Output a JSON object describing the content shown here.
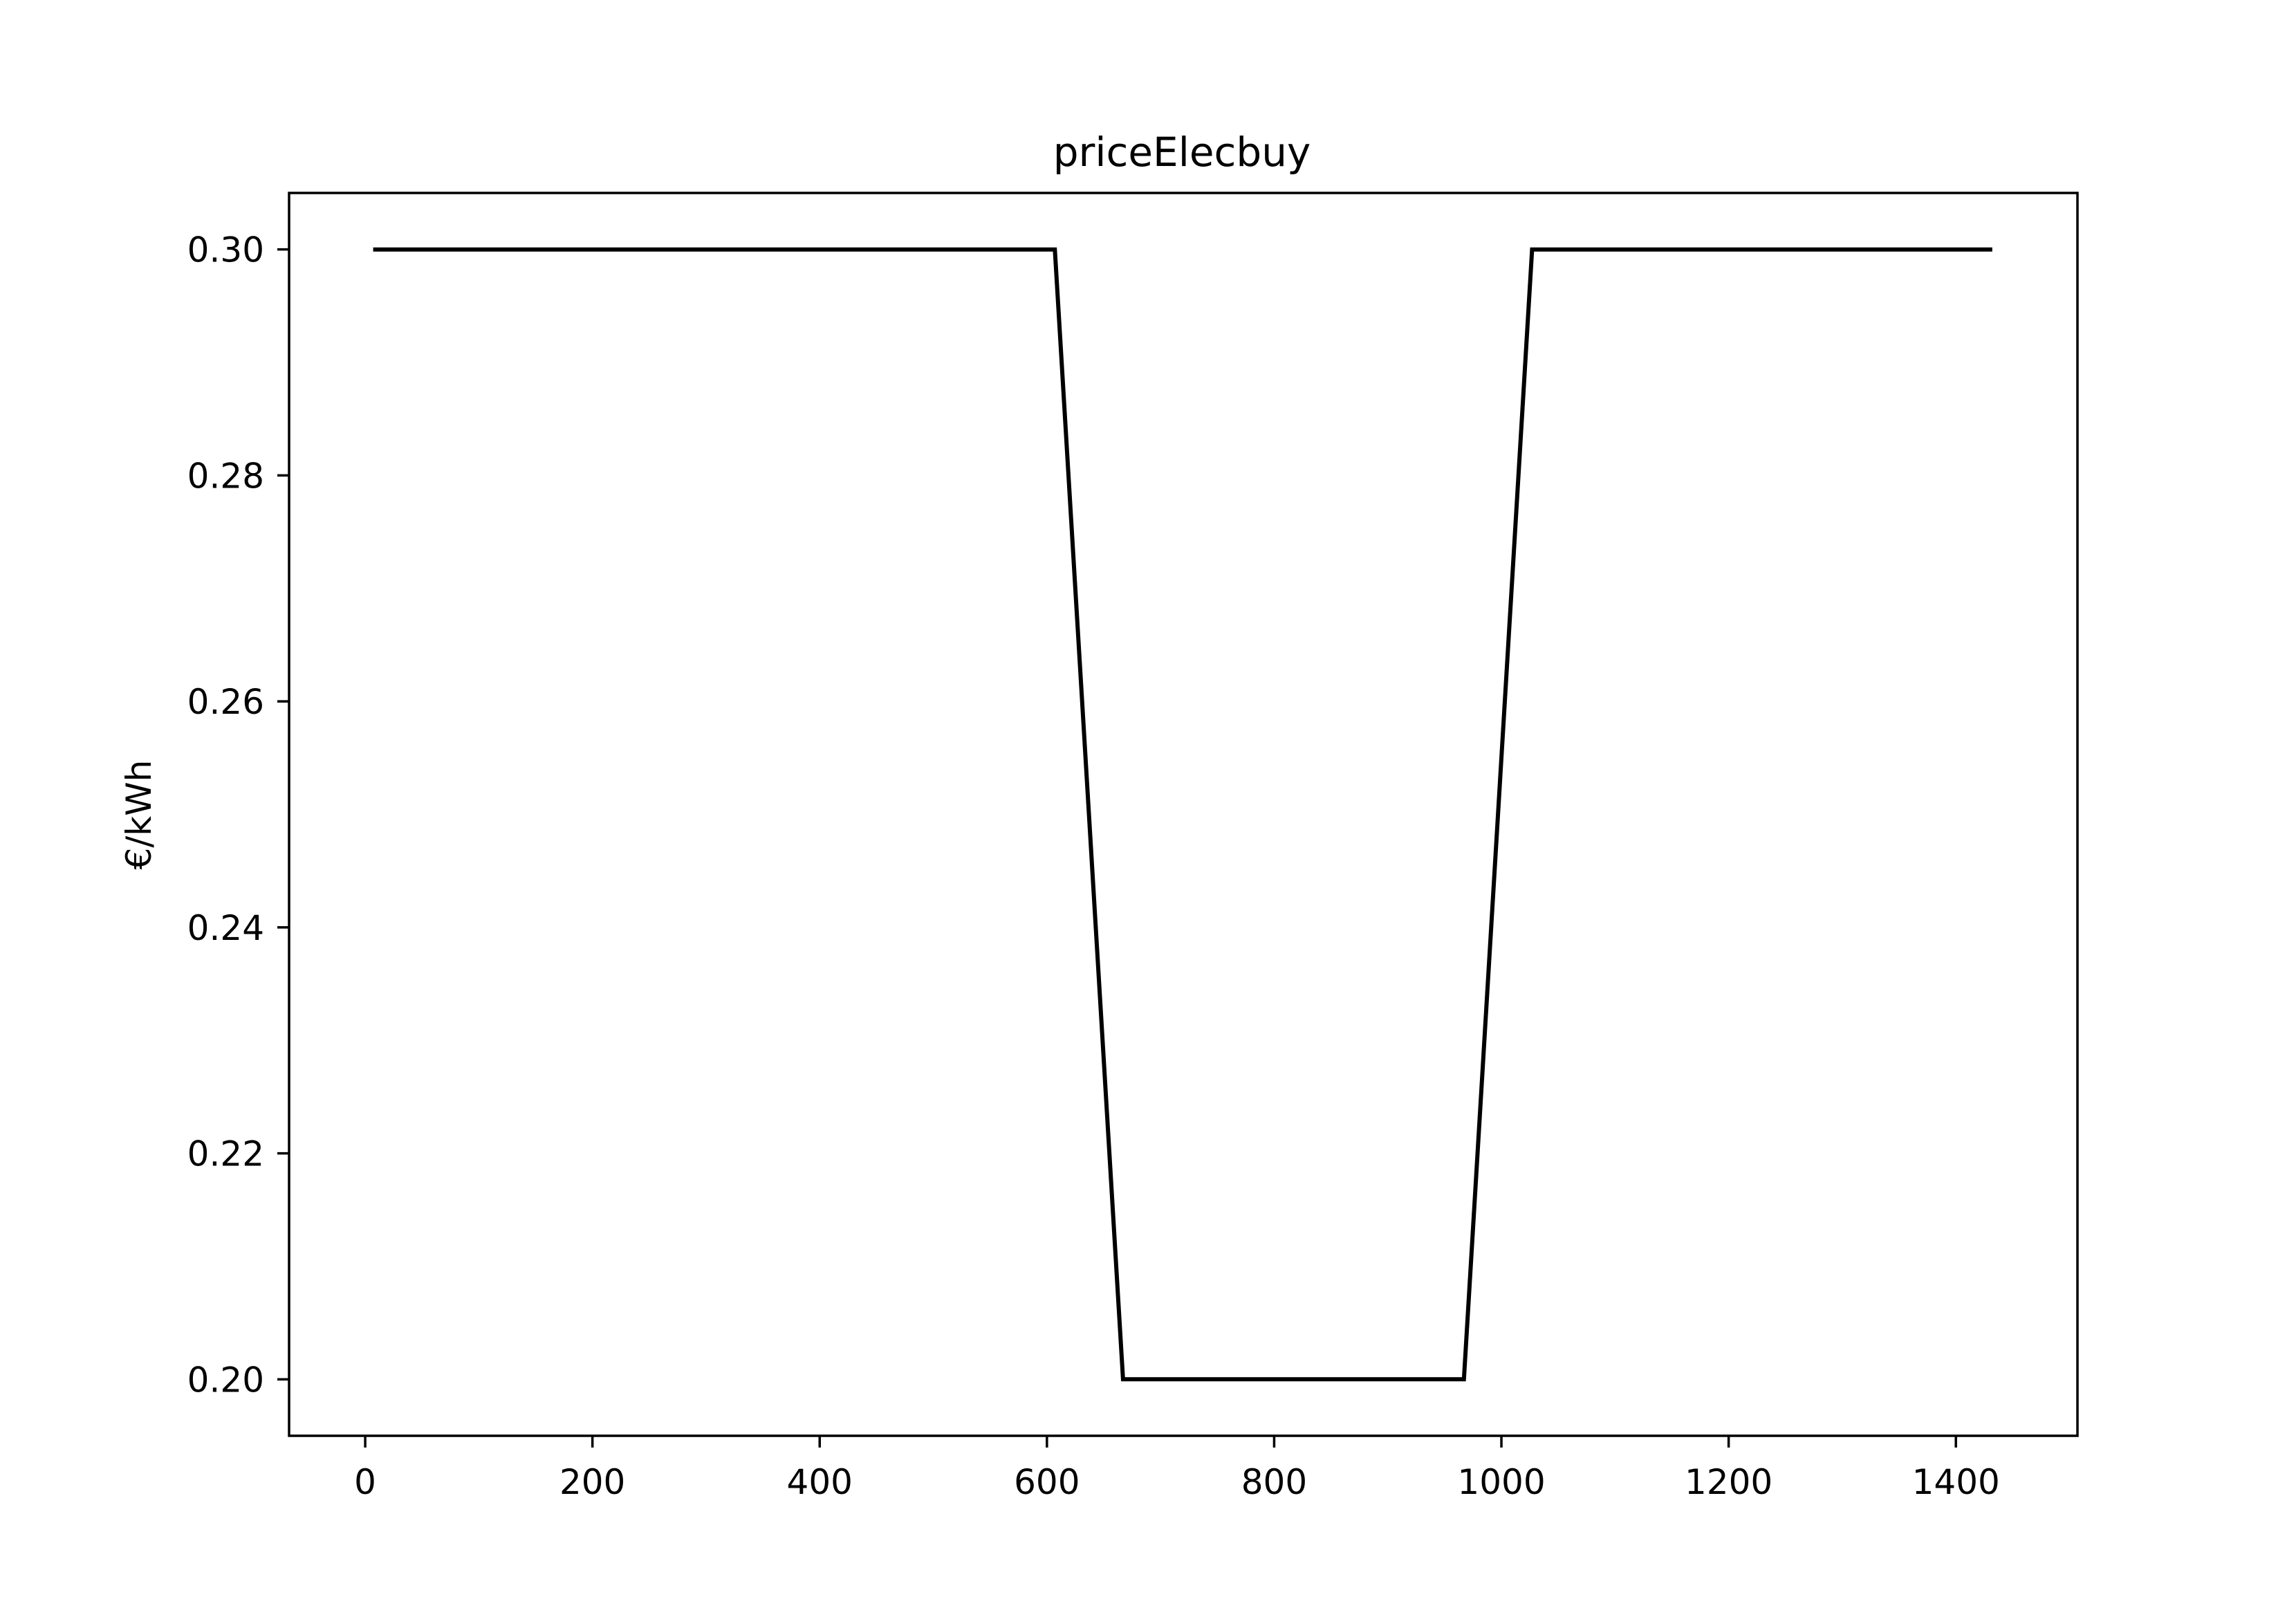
{
  "chart_data": {
    "type": "line",
    "title": "priceElecbuy",
    "xlabel": "",
    "ylabel": "€/kWh",
    "xlim": [
      -67,
      1507
    ],
    "ylim": [
      0.195,
      0.305
    ],
    "xticks": [
      0,
      200,
      400,
      600,
      800,
      1000,
      1200,
      1400
    ],
    "xtick_labels": [
      "0",
      "200",
      "400",
      "600",
      "800",
      "1000",
      "1200",
      "1400"
    ],
    "yticks": [
      0.2,
      0.22,
      0.24,
      0.26,
      0.28,
      0.3
    ],
    "ytick_labels": [
      "0.20",
      "0.22",
      "0.24",
      "0.26",
      "0.28",
      "0.30"
    ],
    "grid": false,
    "legend": "none",
    "series": [
      {
        "color": "#000000",
        "x": [
          7,
          607,
          667,
          967,
          1027,
          1432
        ],
        "y": [
          0.3,
          0.3,
          0.2,
          0.2,
          0.3,
          0.3
        ]
      }
    ]
  }
}
